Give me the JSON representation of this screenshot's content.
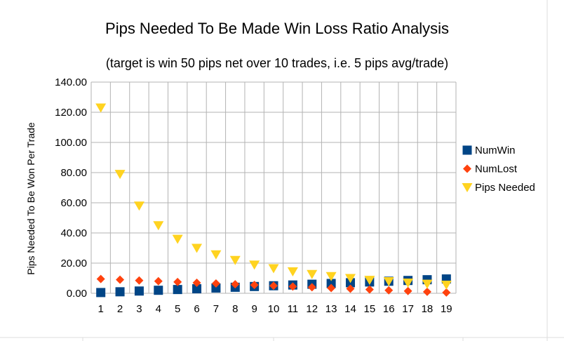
{
  "chart_data": {
    "type": "scatter",
    "title": "Pips Needed To Be Made Win Loss Ratio Analysis",
    "subtitle": "(target is win 50 pips net over 10 trades, i.e. 5 pips avg/trade)",
    "xlabel": "",
    "ylabel": "Pips Needed To Be Won Per Trade",
    "x": [
      1,
      2,
      3,
      4,
      5,
      6,
      7,
      8,
      9,
      10,
      11,
      12,
      13,
      14,
      15,
      16,
      17,
      18,
      19
    ],
    "x_tick_labels": [
      "1",
      "2",
      "3",
      "4",
      "5",
      "6",
      "7",
      "8",
      "9",
      "10",
      "11",
      "12",
      "13",
      "14",
      "15",
      "16",
      "17",
      "18",
      "19"
    ],
    "ylim": [
      0,
      140
    ],
    "y_ticks": [
      0,
      20,
      40,
      60,
      80,
      100,
      120,
      140
    ],
    "y_tick_labels": [
      "0.00",
      "20.00",
      "40.00",
      "60.00",
      "80.00",
      "100.00",
      "120.00",
      "140.00"
    ],
    "grid": true,
    "legend_position": "right",
    "series": [
      {
        "name": "NumWin",
        "marker": "square",
        "color": "#004586",
        "values": [
          0.5,
          1,
          1.5,
          2,
          2.5,
          3,
          3.5,
          4,
          4.5,
          5,
          5.5,
          6,
          6.5,
          7,
          7.5,
          8,
          8.5,
          9,
          9.5
        ]
      },
      {
        "name": "NumLost",
        "marker": "diamond",
        "color": "#ff420e",
        "values": [
          9.5,
          9,
          8.5,
          8,
          7.5,
          7,
          6.5,
          6,
          5.5,
          5,
          4.5,
          4,
          3.5,
          3,
          2.5,
          2,
          1.5,
          1,
          0.5
        ]
      },
      {
        "name": "Pips Needed",
        "marker": "triangle-down",
        "color": "#ffd320",
        "values": [
          123,
          79,
          58,
          45,
          36,
          30,
          25.7,
          22,
          18.9,
          16.5,
          14.4,
          12.7,
          11.3,
          10,
          8.8,
          7.9,
          7,
          6.2,
          5.6
        ]
      }
    ]
  }
}
